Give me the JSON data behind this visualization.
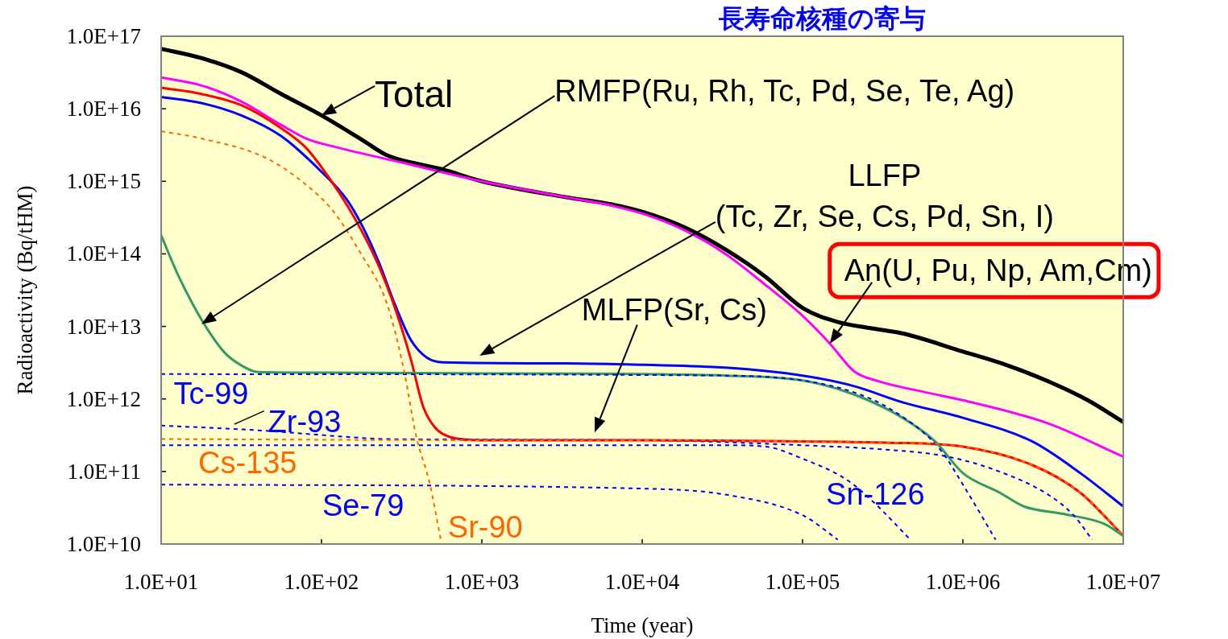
{
  "chart_data": {
    "type": "line",
    "title": "長寿命核種の寄与",
    "xlabel": "Time (year)",
    "ylabel": "Radioactivity (Bq/tHM)",
    "log": "xy",
    "xlim": [
      10,
      10000000
    ],
    "ylim": [
      10000000000,
      100000000000000000
    ],
    "xticks": [
      {
        "value": 10,
        "label": "1.0E+01"
      },
      {
        "value": 100,
        "label": "1.0E+02"
      },
      {
        "value": 1000,
        "label": "1.0E+03"
      },
      {
        "value": 10000,
        "label": "1.0E+04"
      },
      {
        "value": 100000,
        "label": "1.0E+05"
      },
      {
        "value": 1000000,
        "label": "1.0E+06"
      },
      {
        "value": 10000000,
        "label": "1.0E+07"
      }
    ],
    "yticks": [
      {
        "value": 10000000000,
        "label": "1.0E+10"
      },
      {
        "value": 100000000000,
        "label": "1.0E+11"
      },
      {
        "value": 1000000000000,
        "label": "1.0E+12"
      },
      {
        "value": 10000000000000,
        "label": "1.0E+13"
      },
      {
        "value": 100000000000000,
        "label": "1.0E+14"
      },
      {
        "value": 1000000000000000,
        "label": "1.0E+15"
      },
      {
        "value": 10000000000000000,
        "label": "1.0E+16"
      },
      {
        "value": 100000000000000000,
        "label": "1.0E+17"
      }
    ],
    "grid": false,
    "marker": "none",
    "series": [
      {
        "color": "#000000",
        "line_style": "solid",
        "x": [
          10,
          17.8,
          31.6,
          56,
          100,
          180,
          255,
          574,
          1000,
          3260,
          6500,
          10400,
          18500,
          33000,
          59000,
          100000,
          166000,
          260000,
          420000,
          1000000,
          1900000,
          3400000,
          6000000,
          10000000
        ],
        "values": [
          6.7e+16,
          5e+16,
          3.2e+16,
          1.6e+16,
          8100000000000000.0,
          3700000000000000.0,
          2300000000000000.0,
          1450000000000000.0,
          1000000000000000.0,
          610000000000000.0,
          480000000000000.0,
          370000000000000.0,
          230000000000000.0,
          115000000000000.0,
          48000000000000.0,
          18000000000000.0,
          11500000000000.0,
          9500000000000.0,
          8000000000000.0,
          4500000000000.0,
          2900000000000.0,
          1750000000000.0,
          960000000000.0,
          480000000000.0
        ]
      },
      {
        "color": "#ff00ff",
        "line_style": "solid",
        "x": [
          10,
          17.8,
          31.6,
          56,
          80,
          128,
          322,
          1000,
          3260,
          6500,
          10400,
          18500,
          33000,
          59000,
          100000,
          148000,
          210000,
          300000,
          590000,
          1000000,
          3400000,
          10000000
        ],
        "values": [
          2.7e+16,
          2.1e+16,
          1.26e+16,
          6000000000000000.0,
          3900000000000000.0,
          2900000000000000.0,
          1800000000000000.0,
          1000000000000000.0,
          610000000000000.0,
          460000000000000.0,
          350000000000000.0,
          210000000000000.0,
          100000000000000.0,
          37000000000000.0,
          14000000000000.0,
          5800000000000.0,
          2400000000000.0,
          1750000000000.0,
          1230000000000.0,
          960000000000.0,
          460000000000.0,
          160000000000.0
        ]
      },
      {
        "color": "#0000ff",
        "line_style": "solid",
        "x": [
          10,
          17.8,
          31.6,
          56,
          100,
          143,
          180,
          227,
          287,
          361,
          455,
          574,
          3260,
          10400,
          33000,
          100000,
          210000,
          420000,
          1000000,
          2700000,
          5400000,
          10000000
        ],
        "values": [
          1.45e+16,
          1.2e+16,
          8100000000000000.0,
          4200000000000000.0,
          1350000000000000.0,
          570000000000000.0,
          240000000000000.0,
          78000000000000.0,
          20000000000000.0,
          6500000000000.0,
          3700000000000.0,
          3200000000000.0,
          3100000000000.0,
          2950000000000.0,
          2700000000000.0,
          2100000000000.0,
          1500000000000.0,
          900000000000.0,
          550000000000.0,
          260000000000.0,
          95000000000.0,
          33000000000.0
        ]
      },
      {
        "color": "#ff0000",
        "line_style": "solid",
        "x": [
          10,
          17.8,
          31.6,
          56,
          80,
          113,
          161,
          227,
          287,
          361,
          430,
          512,
          644,
          1000,
          10400,
          100000,
          330000,
          1000000,
          2700000,
          5400000,
          10000000
        ],
        "values": [
          1.95e+16,
          1.6e+16,
          1.12e+16,
          5400000000000000.0,
          2900000000000000.0,
          1070000000000000.0,
          310000000000000.0,
          69000000000000.0,
          18000000000000.0,
          3500000000000.0,
          790000000000.0,
          400000000000.0,
          295000000000.0,
          270000000000.0,
          270000000000.0,
          260000000000.0,
          250000000000.0,
          220000000000.0,
          123000000000.0,
          51000000000.0,
          13000000000.0
        ]
      },
      {
        "color": "#339966",
        "line_style": "solid",
        "x": [
          10,
          12.6,
          15.8,
          20,
          25,
          31.6,
          40,
          100,
          1000,
          10400,
          33000,
          100000,
          210000,
          420000,
          670000,
          1000000,
          1700000,
          2400000,
          4200000,
          7600000,
          10000000
        ],
        "values": [
          180000000000000.0,
          54000000000000.0,
          20000000000000.0,
          8300000000000.0,
          4300000000000.0,
          2900000000000.0,
          2350000000000.0,
          2300000000000.0,
          2250000000000.0,
          2200000000000.0,
          2100000000000.0,
          1800000000000.0,
          1150000000000.0,
          550000000000.0,
          260000000000.0,
          95000000000.0,
          51000000000.0,
          33000000000.0,
          26000000000.0,
          19000000000.0,
          13000000000.0
        ]
      },
      {
        "name": "Tc-99",
        "color": "#0000ff",
        "line_style": "dotted",
        "x": [
          10,
          33000,
          100000,
          210000,
          330000,
          590000,
          750000,
          1000000,
          1600000
        ],
        "values": [
          2200000000000.0,
          2100000000000.0,
          1800000000000.0,
          1230000000000.0,
          790000000000.0,
          320000000000.0,
          180000000000.0,
          66000000000.0,
          11500000000.0
        ]
      },
      {
        "name": "Zr-93",
        "color": "#0000ff",
        "line_style": "dotted",
        "x": [
          10,
          40,
          180,
          255,
          10400,
          100000,
          330000,
          750000,
          1550000,
          3400000,
          4900000,
          6400000
        ],
        "values": [
          430000000000.0,
          370000000000.0,
          290000000000.0,
          280000000000.0,
          270000000000.0,
          230000000000.0,
          200000000000.0,
          165000000000.0,
          107000000000.0,
          48000000000.0,
          25000000000.0,
          11500000000.0
        ]
      },
      {
        "name": "Cs-135",
        "color": "#ff6600",
        "line_style": "dotted",
        "x": [
          10,
          1000,
          10400,
          100000,
          330000,
          1000000,
          2700000,
          5400000,
          10000000
        ],
        "values": [
          280000000000.0,
          270000000000.0,
          270000000000.0,
          260000000000.0,
          250000000000.0,
          220000000000.0,
          123000000000.0,
          51000000000.0,
          13000000000.0
        ]
      },
      {
        "name": "Se-79",
        "color": "#0000ff",
        "line_style": "dotted",
        "x": [
          10,
          10400,
          33000,
          100000,
          166000
        ],
        "values": [
          66000000000.0,
          58000000000.0,
          48000000000.0,
          25000000000.0,
          11500000000.0
        ]
      },
      {
        "name": "Sr-90",
        "color": "#ff6600",
        "line_style": "dotted",
        "x": [
          10,
          17.8,
          45,
          80,
          118,
          174,
          255,
          322,
          392,
          471,
          555
        ],
        "values": [
          4900000000000000.0,
          3900000000000000.0,
          2100000000000000.0,
          900000000000000.0,
          390000000000000.0,
          105000000000000.0,
          21000000000000.0,
          2900000000000.0,
          290000000000.0,
          71000000000.0,
          11500000000.0
        ]
      },
      {
        "name": "Sn-126",
        "color": "#0000ff",
        "line_style": "dotted",
        "x": [
          10,
          33000,
          59000,
          100000,
          187000,
          270000,
          470000
        ],
        "values": [
          230000000000.0,
          230000000000.0,
          220000000000.0,
          150000000000.0,
          78000000000.0,
          40000000000.0,
          11500000000.0
        ]
      }
    ],
    "annotations": [
      {
        "text": "Total",
        "x": 100,
        "y": 8100000000000000.0
      },
      "RMFP(Ru, Rh, Tc, Pd, Se, Te, Ag)",
      "LLFP\n(Tc, Zr, Se, Cs, Pd, Sn, I)",
      {
        "text": "An(U, Pu, Np, Am,Cm)",
        "x": 148000,
        "y": 5800000000000.0
      },
      "MLFP(Sr, Cs)"
    ]
  }
}
